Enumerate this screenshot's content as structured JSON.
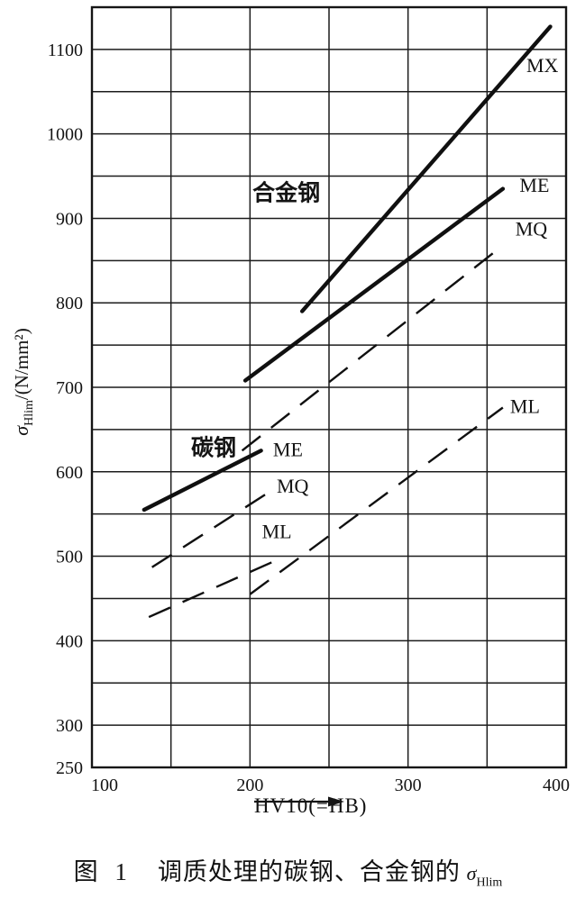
{
  "figure": {
    "caption_prefix": "图 1",
    "caption_main": "调质处理的碳钢、合金钢的",
    "caption_sigma": "σ",
    "caption_sigma_sub": "Hlim"
  },
  "axes": {
    "y_title_sigma": "σ",
    "y_title_sub": "Hlim",
    "y_title_units": "/(N/mm²)",
    "x_title": "HV10(=HB)"
  },
  "colors": {
    "ink": "#141414",
    "paper": "#ffffff"
  },
  "chart_data": {
    "type": "line",
    "title": "",
    "xlabel": "HV10(=HB)",
    "ylabel": "σHlim/(N/mm²)",
    "x_range": [
      100,
      400
    ],
    "y_range": [
      250,
      1150
    ],
    "x_grid_step": 50,
    "y_grid_step": 50,
    "x_ticks": [
      100,
      200,
      300,
      400
    ],
    "y_ticks": [
      250,
      300,
      400,
      500,
      600,
      700,
      800,
      900,
      1000,
      1100
    ],
    "grid": true,
    "legend_position": "inline-labels",
    "series": [
      {
        "name": "carbon-ME",
        "group": "碳钢",
        "quality": "ME",
        "style": "solid",
        "x": [
          133,
          207
        ],
        "y": [
          555,
          625
        ]
      },
      {
        "name": "carbon-MQ",
        "group": "碳钢",
        "quality": "MQ",
        "style": "dashed",
        "x": [
          138,
          213
        ],
        "y": [
          487,
          577
        ]
      },
      {
        "name": "carbon-ML",
        "group": "碳钢",
        "quality": "ML",
        "style": "dashed",
        "x": [
          136,
          220
        ],
        "y": [
          428,
          498
        ]
      },
      {
        "name": "alloy-MX",
        "group": "合金钢",
        "quality": "MX",
        "style": "solid",
        "x": [
          233,
          390
        ],
        "y": [
          790,
          1127
        ]
      },
      {
        "name": "alloy-ME",
        "group": "合金钢",
        "quality": "ME",
        "style": "solid",
        "x": [
          197,
          360
        ],
        "y": [
          708,
          935
        ]
      },
      {
        "name": "alloy-MQ",
        "group": "合金钢",
        "quality": "MQ",
        "style": "dashed",
        "x": [
          195,
          360
        ],
        "y": [
          625,
          868
        ]
      },
      {
        "name": "alloy-ML",
        "group": "合金钢",
        "quality": "ML",
        "style": "dashed",
        "x": [
          200,
          360
        ],
        "y": [
          455,
          676
        ]
      }
    ],
    "annotations": [
      {
        "text": "合金钢",
        "x": 223,
        "y": 930,
        "cls": "cjk"
      },
      {
        "text": "碳钢",
        "x": 177,
        "y": 628,
        "cls": "cjk"
      },
      {
        "text": "ME",
        "x": 224,
        "y": 627,
        "cls": "code"
      },
      {
        "text": "MQ",
        "x": 227,
        "y": 584,
        "cls": "code"
      },
      {
        "text": "ML",
        "x": 217,
        "y": 530,
        "cls": "code"
      },
      {
        "text": "MX",
        "x": 385,
        "y": 1082,
        "cls": "code"
      },
      {
        "text": "ME",
        "x": 380,
        "y": 940,
        "cls": "code"
      },
      {
        "text": "MQ",
        "x": 378,
        "y": 888,
        "cls": "code"
      },
      {
        "text": "ML",
        "x": 374,
        "y": 678,
        "cls": "code"
      }
    ]
  }
}
